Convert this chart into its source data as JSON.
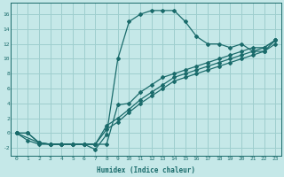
{
  "background_color": "#c5e8e8",
  "grid_color": "#9ecece",
  "line_color": "#1a6b6b",
  "marker_color": "#1a6b6b",
  "xlabel": "Humidex (Indice chaleur)",
  "xlim": [
    -0.5,
    23.5
  ],
  "ylim": [
    -3.0,
    17.5
  ],
  "xticks": [
    0,
    1,
    2,
    3,
    4,
    5,
    6,
    7,
    8,
    9,
    10,
    11,
    12,
    13,
    14,
    15,
    16,
    17,
    18,
    19,
    20,
    21,
    22,
    23
  ],
  "yticks": [
    -2,
    0,
    2,
    4,
    6,
    8,
    10,
    12,
    14,
    16
  ],
  "curve1_x": [
    0,
    1,
    2,
    3,
    4,
    5,
    6,
    7,
    8,
    9,
    10,
    11,
    12,
    13,
    14,
    15,
    16,
    17,
    18,
    19,
    20,
    21,
    22,
    23
  ],
  "curve1_y": [
    0,
    -1,
    -1.5,
    -1.5,
    -1.5,
    -1.5,
    -1.5,
    -2.2,
    -0.2,
    10,
    15,
    16,
    16.5,
    16.5,
    16.5,
    15,
    13,
    12,
    12,
    11.5,
    12,
    11,
    11,
    12.5
  ],
  "curve2_x": [
    0,
    2,
    3,
    4,
    5,
    6,
    7,
    8,
    9,
    10,
    11,
    12,
    13,
    14,
    15,
    16,
    17,
    18,
    19,
    20,
    21,
    22,
    23
  ],
  "curve2_y": [
    0,
    -1.3,
    -1.5,
    -1.5,
    -1.5,
    -1.5,
    -1.5,
    -1.5,
    3.8,
    4.0,
    5.5,
    6.5,
    7.5,
    8.0,
    8.5,
    9.0,
    9.5,
    10,
    10.5,
    11,
    11.5,
    11.5,
    12.5
  ],
  "curve3_x": [
    0,
    1,
    2,
    3,
    4,
    5,
    6,
    7,
    8,
    9,
    10,
    11,
    12,
    13,
    14,
    15,
    16,
    17,
    18,
    19,
    20,
    21,
    22,
    23
  ],
  "curve3_y": [
    0,
    0,
    -1.3,
    -1.5,
    -1.5,
    -1.5,
    -1.5,
    -1.5,
    1.0,
    2.0,
    3.2,
    4.5,
    5.5,
    6.5,
    7.5,
    8.0,
    8.5,
    9.0,
    9.5,
    10,
    10.5,
    11,
    11.5,
    12.5
  ],
  "curve4_x": [
    0,
    1,
    2,
    3,
    4,
    5,
    6,
    7,
    8,
    9,
    10,
    11,
    12,
    13,
    14,
    15,
    16,
    17,
    18,
    19,
    20,
    21,
    22,
    23
  ],
  "curve4_y": [
    0,
    0,
    -1.3,
    -1.5,
    -1.5,
    -1.5,
    -1.5,
    -1.5,
    0.5,
    1.5,
    2.8,
    4.0,
    5.0,
    6.0,
    7.0,
    7.5,
    8.0,
    8.5,
    9.0,
    9.5,
    10,
    10.5,
    11,
    12
  ]
}
